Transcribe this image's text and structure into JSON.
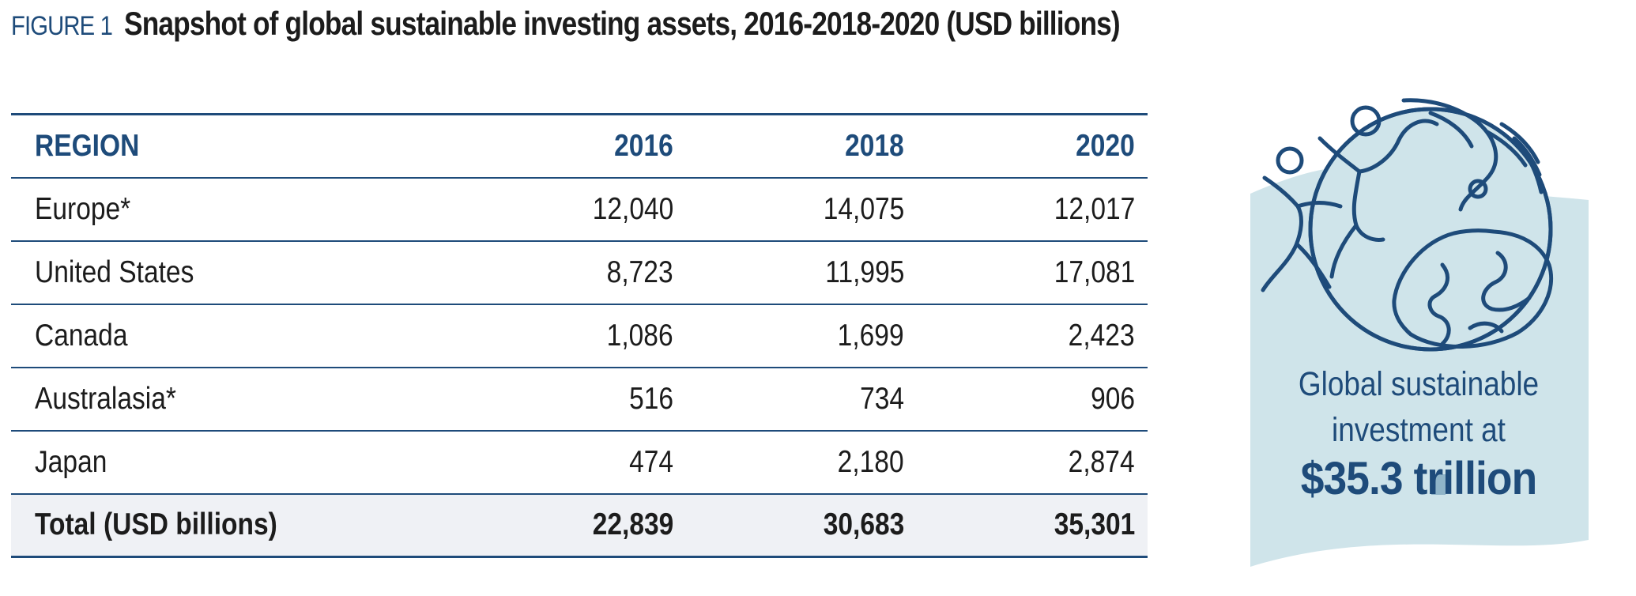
{
  "figure": {
    "label": "FIGURE 1",
    "title": "Snapshot of global sustainable investing assets, 2016-2018-2020 (USD billions)"
  },
  "chart_data": {
    "type": "table",
    "title": "Snapshot of global sustainable investing assets, 2016-2018-2020 (USD billions)",
    "columns": [
      "REGION",
      "2016",
      "2018",
      "2020"
    ],
    "rows": [
      {
        "region": "Europe*",
        "values": [
          "12,040",
          "14,075",
          "12,017"
        ]
      },
      {
        "region": "United States",
        "values": [
          "8,723",
          "11,995",
          "17,081"
        ]
      },
      {
        "region": "Canada",
        "values": [
          "1,086",
          "1,699",
          "2,423"
        ]
      },
      {
        "region": "Australasia*",
        "values": [
          "516",
          "734",
          "906"
        ]
      },
      {
        "region": "Japan",
        "values": [
          "474",
          "2,180",
          "2,874"
        ]
      }
    ],
    "total": {
      "region": "Total (USD billions)",
      "values": [
        "22,839",
        "30,683",
        "35,301"
      ]
    }
  },
  "callout": {
    "line1": "Global sustainable",
    "line2": "investment at",
    "amount": "$35.3 trillion",
    "icon": "people-and-globe-icon",
    "colors": {
      "wave": "#cfe4ea",
      "ink": "#1e4b7a"
    }
  }
}
